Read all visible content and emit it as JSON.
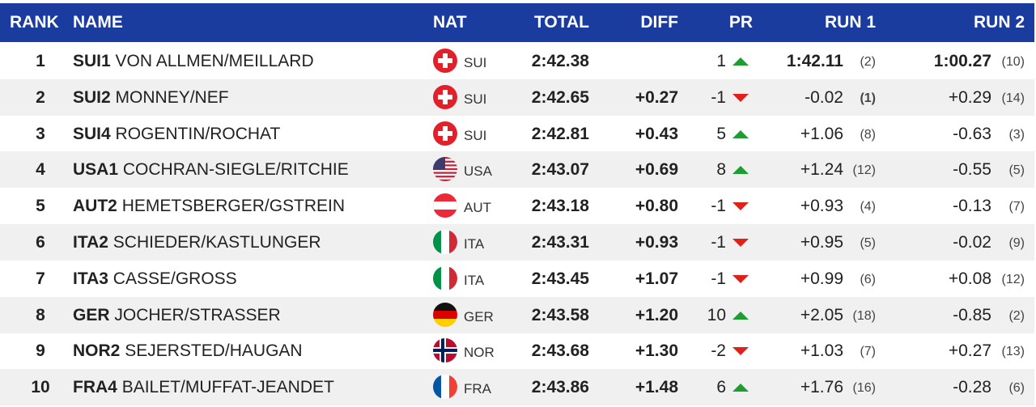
{
  "header": {
    "rank": "RANK",
    "name": "NAME",
    "nat": "NAT",
    "total": "TOTAL",
    "diff": "DIFF",
    "pr": "PR",
    "run1": "RUN 1",
    "run2": "RUN 2"
  },
  "rows": [
    {
      "rank": 1,
      "code": "SUI1",
      "name": "VON ALLMEN/MEILLARD",
      "nat": "SUI",
      "total": "2:42.38",
      "diff": null,
      "pr": 1,
      "run1": "1:42.11",
      "run1_rank": "(2)",
      "run2": "1:00.27",
      "run2_rank": "(10)"
    },
    {
      "rank": 2,
      "code": "SUI2",
      "name": "MONNEY/NEF",
      "nat": "SUI",
      "total": "2:42.65",
      "diff": "+0.27",
      "pr": -1,
      "run1": "-0.02",
      "run1_rank": "(1)",
      "run2": "+0.29",
      "run2_rank": "(14)"
    },
    {
      "rank": 3,
      "code": "SUI4",
      "name": "ROGENTIN/ROCHAT",
      "nat": "SUI",
      "total": "2:42.81",
      "diff": "+0.43",
      "pr": 5,
      "run1": "+1.06",
      "run1_rank": "(8)",
      "run2": "-0.63",
      "run2_rank": "(3)"
    },
    {
      "rank": 4,
      "code": "USA1",
      "name": "COCHRAN-SIEGLE/RITCHIE",
      "nat": "USA",
      "total": "2:43.07",
      "diff": "+0.69",
      "pr": 8,
      "run1": "+1.24",
      "run1_rank": "(12)",
      "run2": "-0.55",
      "run2_rank": "(5)"
    },
    {
      "rank": 5,
      "code": "AUT2",
      "name": "HEMETSBERGER/GSTREIN",
      "nat": "AUT",
      "total": "2:43.18",
      "diff": "+0.80",
      "pr": -1,
      "run1": "+0.93",
      "run1_rank": "(4)",
      "run2": "-0.13",
      "run2_rank": "(7)"
    },
    {
      "rank": 6,
      "code": "ITA2",
      "name": "SCHIEDER/KASTLUNGER",
      "nat": "ITA",
      "total": "2:43.31",
      "diff": "+0.93",
      "pr": -1,
      "run1": "+0.95",
      "run1_rank": "(5)",
      "run2": "-0.02",
      "run2_rank": "(9)"
    },
    {
      "rank": 7,
      "code": "ITA3",
      "name": "CASSE/GROSS",
      "nat": "ITA",
      "total": "2:43.45",
      "diff": "+1.07",
      "pr": -1,
      "run1": "+0.99",
      "run1_rank": "(6)",
      "run2": "+0.08",
      "run2_rank": "(12)"
    },
    {
      "rank": 8,
      "code": "GER",
      "name": "JOCHER/STRASSER",
      "nat": "GER",
      "total": "2:43.58",
      "diff": "+1.20",
      "pr": 10,
      "run1": "+2.05",
      "run1_rank": "(18)",
      "run2": "-0.85",
      "run2_rank": "(2)"
    },
    {
      "rank": 9,
      "code": "NOR2",
      "name": "SEJERSTED/HAUGAN",
      "nat": "NOR",
      "total": "2:43.68",
      "diff": "+1.30",
      "pr": -2,
      "run1": "+1.03",
      "run1_rank": "(7)",
      "run2": "+0.27",
      "run2_rank": "(13)"
    },
    {
      "rank": 10,
      "code": "FRA4",
      "name": "BAILET/MUFFAT-JEANDET",
      "nat": "FRA",
      "total": "2:43.86",
      "diff": "+1.48",
      "pr": 6,
      "run1": "+1.76",
      "run1_rank": "(16)",
      "run2": "-0.28",
      "run2_rank": "(6)"
    }
  ]
}
